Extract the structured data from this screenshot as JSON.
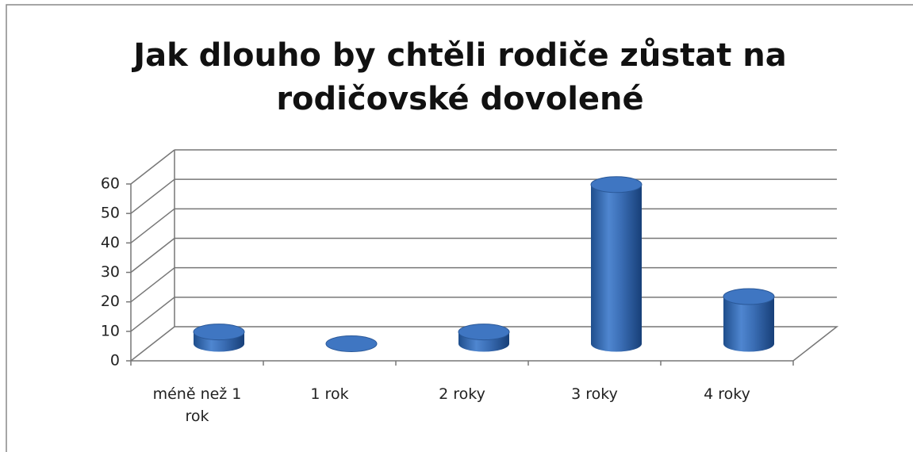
{
  "chart_data": {
    "type": "bar3d",
    "title": [
      "Jak dlouho by chtěli rodiče zůstat na",
      "rodičovské dovolené"
    ],
    "categories": [
      "méně než 1 rok",
      "1 rok",
      "2 roky",
      "3 roky",
      "4 roky"
    ],
    "values": [
      4,
      0,
      4,
      54,
      16
    ],
    "color": "#3b6fb6",
    "ylim": [
      0,
      60
    ],
    "yticks": [
      0,
      10,
      20,
      30,
      40,
      50,
      60
    ],
    "grid": true
  }
}
